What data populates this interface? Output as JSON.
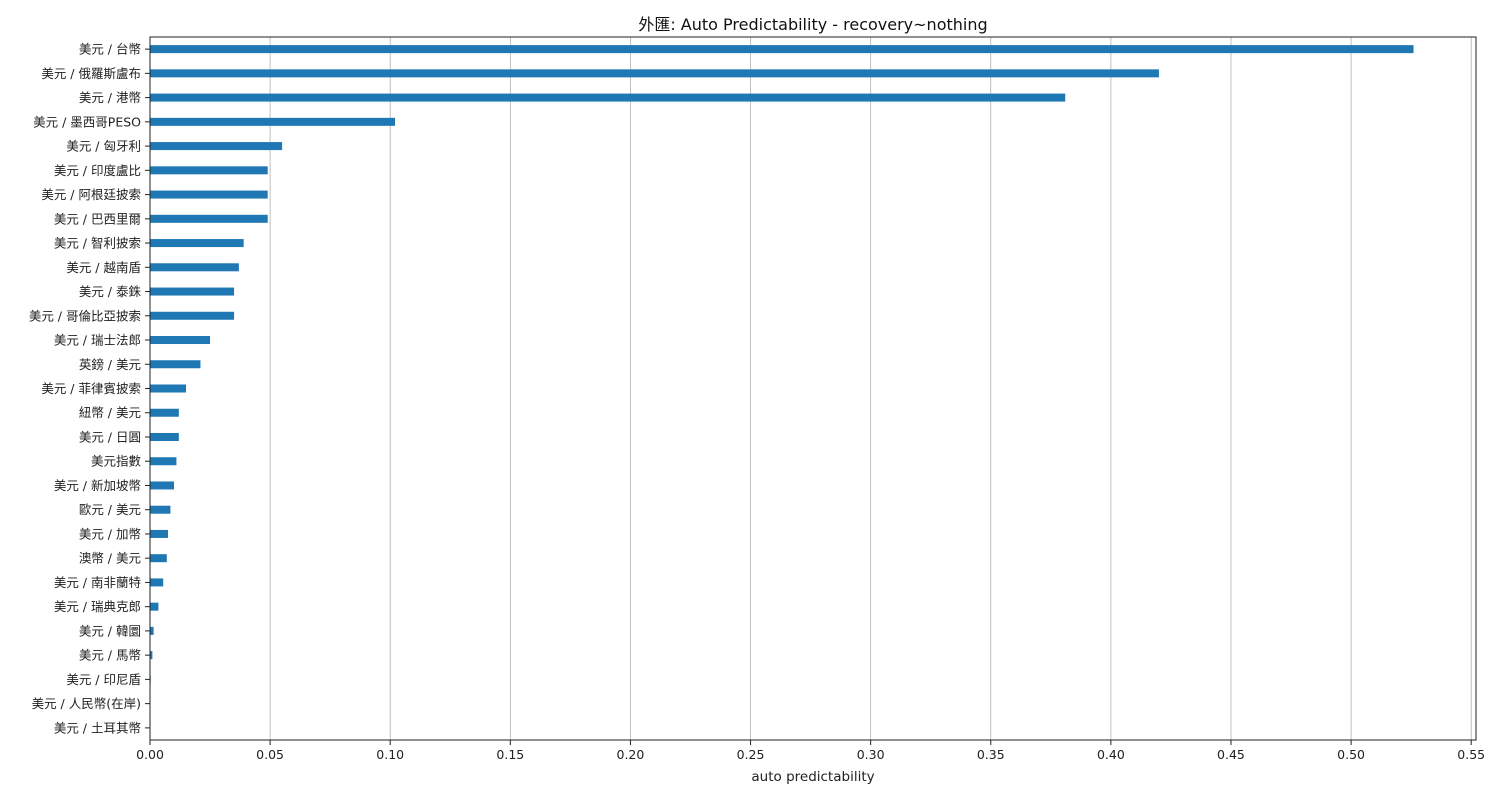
{
  "chart_data": {
    "type": "bar",
    "orientation": "horizontal",
    "title": "外匯: Auto Predictability - recovery~nothing",
    "xlabel": "auto predictability",
    "ylabel": "",
    "xlim": [
      0.0,
      0.552
    ],
    "x_ticks": [
      "0.00",
      "0.05",
      "0.10",
      "0.15",
      "0.20",
      "0.25",
      "0.30",
      "0.35",
      "0.40",
      "0.45",
      "0.50",
      "0.55"
    ],
    "x_tick_values": [
      0.0,
      0.05,
      0.1,
      0.15,
      0.2,
      0.25,
      0.3,
      0.35,
      0.4,
      0.45,
      0.5,
      0.55
    ],
    "grid": "vertical",
    "bar_color": "#1f77b4",
    "categories": [
      "美元 / 台幣",
      "美元 / 俄羅斯盧布",
      "美元 / 港幣",
      "美元 / 墨西哥PESO",
      "美元 / 匈牙利",
      "美元 / 印度盧比",
      "美元 / 阿根廷披索",
      "美元 / 巴西里爾",
      "美元 / 智利披索",
      "美元 / 越南盾",
      "美元 / 泰銖",
      "美元 / 哥倫比亞披索",
      "美元 / 瑞士法郎",
      "英鎊 / 美元",
      "美元 / 菲律賓披索",
      "紐幣 / 美元",
      "美元 / 日圓",
      "美元指數",
      "美元 / 新加坡幣",
      "歐元 / 美元",
      "美元 / 加幣",
      "澳幣 / 美元",
      "美元 / 南非蘭特",
      "美元 / 瑞典克郎",
      "美元 / 韓圜",
      "美元 / 馬幣",
      "美元 / 印尼盾",
      "美元 / 人民幣(在岸)",
      "美元 / 土耳其幣"
    ],
    "values": [
      0.526,
      0.42,
      0.381,
      0.102,
      0.055,
      0.049,
      0.049,
      0.049,
      0.039,
      0.037,
      0.035,
      0.035,
      0.025,
      0.021,
      0.015,
      0.012,
      0.012,
      0.011,
      0.01,
      0.0085,
      0.0075,
      0.007,
      0.0055,
      0.0035,
      0.0015,
      0.001,
      0.0003,
      0.0002,
      0.0001
    ]
  }
}
